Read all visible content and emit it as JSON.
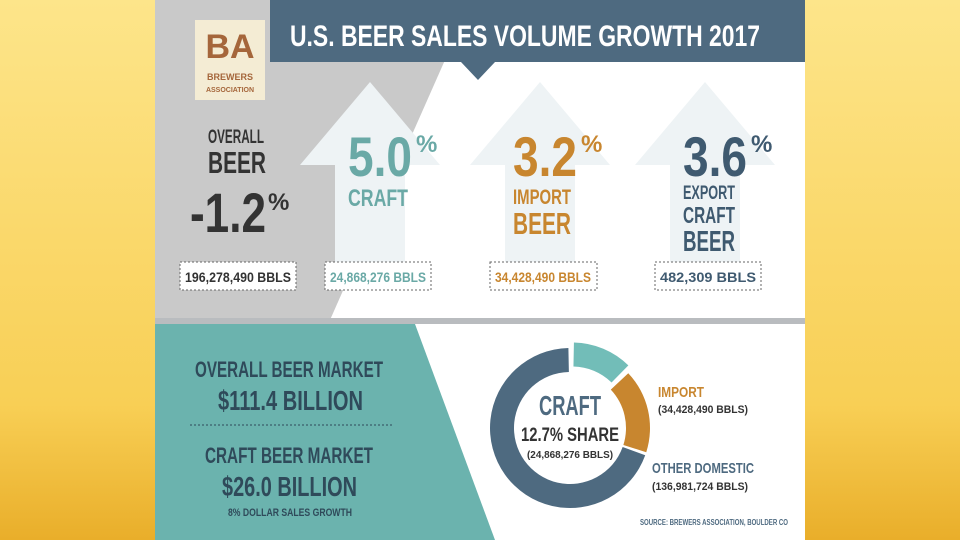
{
  "header": {
    "title": "U.S. BEER SALES VOLUME GROWTH 2017",
    "logo": {
      "mark": "BA",
      "line1": "BREWERS",
      "line2": "ASSOCIATION"
    }
  },
  "overall": {
    "lines": [
      "OVERALL",
      "BEER"
    ],
    "value": "-1.2",
    "unit": "%",
    "volume": "196,278,490 BBLS"
  },
  "segments": [
    {
      "value": "5.0",
      "unit": "%",
      "lines": [
        "CRAFT"
      ],
      "volume": "24,868,276 BBLS",
      "color": "#6aa9a6"
    },
    {
      "value": "3.2",
      "unit": "%",
      "lines": [
        "IMPORT",
        "BEER"
      ],
      "volume": "34,428,490 BBLS",
      "color": "#c8862f"
    },
    {
      "value": "3.6",
      "unit": "%",
      "lines": [
        "EXPORT",
        "CRAFT",
        "BEER"
      ],
      "volume": "482,309 BBLS",
      "color": "#3f5a70"
    }
  ],
  "market": {
    "overall_label": "OVERALL BEER MARKET",
    "overall_value": "$111.4 BILLION",
    "craft_label": "CRAFT BEER MARKET",
    "craft_value": "$26.0 BILLION",
    "craft_note": "8% DOLLAR SALES GROWTH"
  },
  "donut": {
    "share": "12.7% SHARE",
    "slices": [
      {
        "name": "CRAFT",
        "value": 24868276,
        "label": "(24,868,276 BBLS)",
        "color": "#72bdb8"
      },
      {
        "name": "IMPORT",
        "value": 34428490,
        "label": "(34,428,490 BBLS)",
        "color": "#c8862f"
      },
      {
        "name": "OTHER DOMESTIC",
        "value": 136981724,
        "label": "(136,981,724 BBLS)",
        "color": "#4e6a80"
      }
    ]
  },
  "source": "SOURCE: BREWERS ASSOCIATION, BOULDER CO"
}
